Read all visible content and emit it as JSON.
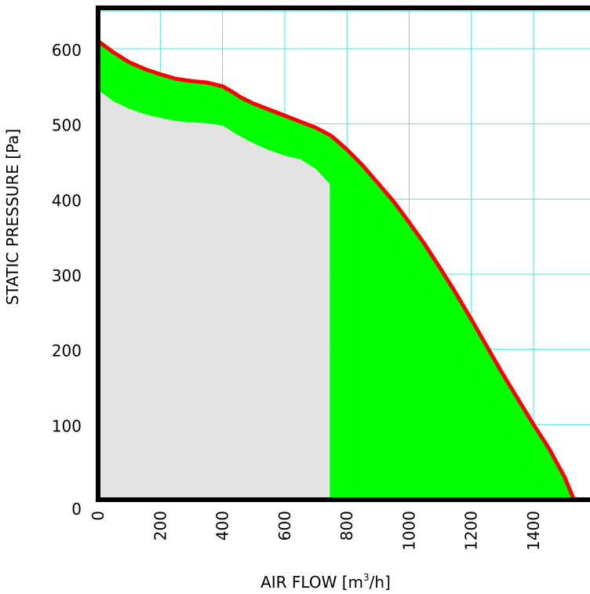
{
  "chart_data": {
    "type": "area",
    "title": "",
    "xlabel": "AIR FLOW [m³/h]",
    "xlabel_parts": {
      "before": "AIR FLOW [m",
      "sup": "3",
      "after": "/h]"
    },
    "ylabel": "STATIC PRESSURE [Pa]",
    "xlim": [
      0,
      1600
    ],
    "ylim": [
      0,
      660
    ],
    "xticks": [
      0,
      200,
      400,
      600,
      800,
      1000,
      1200,
      1400
    ],
    "yticks": [
      0,
      100,
      200,
      300,
      400,
      500,
      600
    ],
    "grid": true,
    "legend": "none",
    "colors": {
      "grid": "#4fe3e3",
      "curve": "#ff0000",
      "operating_area": "#00ff00",
      "lower_area": "#e3e3e3",
      "frame": "#000000"
    },
    "series": [
      {
        "role": "max-curve",
        "x": [
          0,
          50,
          100,
          150,
          200,
          250,
          300,
          350,
          400,
          430,
          460,
          500,
          550,
          600,
          650,
          700,
          750,
          800,
          850,
          900,
          950,
          1000,
          1050,
          1100,
          1150,
          1200,
          1250,
          1300,
          1350,
          1400,
          1450,
          1500,
          1530
        ],
        "y": [
          610,
          595,
          582,
          573,
          566,
          560,
          557,
          555,
          550,
          543,
          535,
          527,
          519,
          511,
          503,
          495,
          484,
          466,
          445,
          421,
          397,
          369,
          340,
          308,
          275,
          240,
          204,
          168,
          134,
          100,
          68,
          30,
          0
        ]
      },
      {
        "role": "min-curve",
        "x": [
          0,
          50,
          100,
          150,
          200,
          250,
          300,
          350,
          400,
          450,
          500,
          550,
          600,
          650,
          700,
          720,
          745
        ],
        "y": [
          545,
          530,
          520,
          513,
          508,
          504,
          502,
          501,
          498,
          485,
          474,
          465,
          458,
          453,
          440,
          431,
          420
        ]
      }
    ],
    "vertical_cutoff_x": 745
  }
}
